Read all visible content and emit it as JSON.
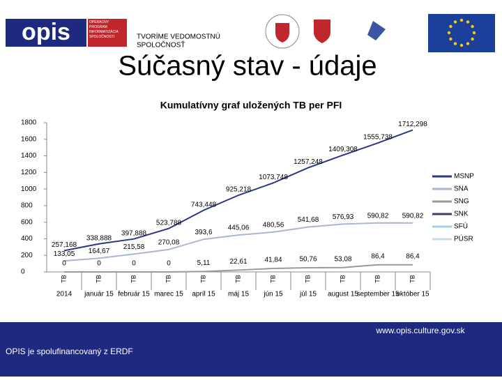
{
  "header": {
    "logo": "opis",
    "logo_caption": "OPERAČNÝ PROGRAM INFORMATIZÁCIA SPOLOČNOSTI",
    "slogan_1": "TVORÍME VEDOMOSTNÚ",
    "slogan_2": "SPOLOČNOSŤ",
    "title": "Súčasný stav - údaje"
  },
  "chart_data": {
    "type": "line",
    "title": "Kumulatívny graf uložených TB per PFI",
    "unit_label": "TB",
    "categories": [
      "2014",
      "január 15",
      "február 15",
      "marec 15",
      "apríl 15",
      "máj 15",
      "jún 15",
      "júl 15",
      "august 15",
      "september 15",
      "október 15"
    ],
    "ylim": [
      0,
      1800
    ],
    "yticks": [
      0,
      200,
      400,
      600,
      800,
      1000,
      1200,
      1400,
      1600,
      1800
    ],
    "legend": "right",
    "series": [
      {
        "name": "MSNP",
        "color": "#2b3585",
        "values": [
          257.168,
          338.888,
          397.888,
          523.788,
          743.448,
          925.218,
          1073.748,
          1257.248,
          1409.308,
          1555.738,
          1712.298
        ],
        "value_labels": [
          "257,168",
          "338,888",
          "397,888",
          "523,788",
          "743,448",
          "925,218",
          "1073,748",
          "1257,248",
          "1409,308",
          "1555,738",
          "1712,298"
        ]
      },
      {
        "name": "SNA",
        "color": "#a9b6d6",
        "values": [
          133.05,
          164.67,
          215.58,
          270.08,
          393.6,
          445.06,
          480.56,
          541.68,
          576.93,
          590.82,
          590.82
        ],
        "value_labels": [
          "133,05",
          "164,67",
          "215,58",
          "270,08",
          "393,6",
          "445,06",
          "480,56",
          "541,68",
          "576,93",
          "590,82",
          "590,82"
        ]
      },
      {
        "name": "SNG",
        "color": "#9a9a9a",
        "values": [
          0,
          0,
          0,
          0,
          5.11,
          22.61,
          41.84,
          50.76,
          53.08,
          86.4,
          86.4
        ],
        "value_labels": [
          "0",
          "0",
          "0",
          "0",
          "5,11",
          "22,61",
          "41,84",
          "50,76",
          "53,08",
          "86,4",
          "86,4"
        ]
      },
      {
        "name": "SNK",
        "color": "#3a3f6e",
        "values": [
          null,
          null,
          null,
          null,
          null,
          null,
          null,
          null,
          null,
          null,
          null
        ]
      },
      {
        "name": "SFÚ",
        "color": "#9ed0e6",
        "values": [
          null,
          null,
          null,
          null,
          null,
          null,
          null,
          null,
          null,
          null,
          null
        ]
      },
      {
        "name": "PÚSR",
        "color": "#c9dbe9",
        "values": [
          null,
          null,
          null,
          null,
          null,
          null,
          null,
          null,
          null,
          null,
          null
        ]
      }
    ]
  },
  "footer": {
    "url": "www.opis.culture.gov.sk",
    "note": "OPIS je spolufinancovaný z ERDF"
  }
}
